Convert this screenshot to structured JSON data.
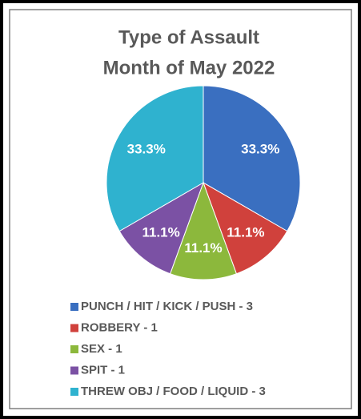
{
  "chart_data": {
    "type": "pie",
    "title": [
      "Type of Assault",
      "Month of May 2022"
    ],
    "categories": [
      "PUNCH / HIT / KICK / PUSH - 3",
      "ROBBERY - 1",
      "SEX - 1",
      "SPIT - 1",
      "THREW OBJ / FOOD / LIQUID - 3"
    ],
    "values": [
      33.3,
      11.1,
      11.1,
      11.1,
      33.3
    ],
    "value_labels": [
      "33.3%",
      "11.1%",
      "11.1%",
      "11.1%",
      "33.3%"
    ],
    "colors": [
      "#3a6fc0",
      "#d0413c",
      "#8cb83c",
      "#7b51a4",
      "#2fb2cf"
    ],
    "legend": "bottom"
  }
}
